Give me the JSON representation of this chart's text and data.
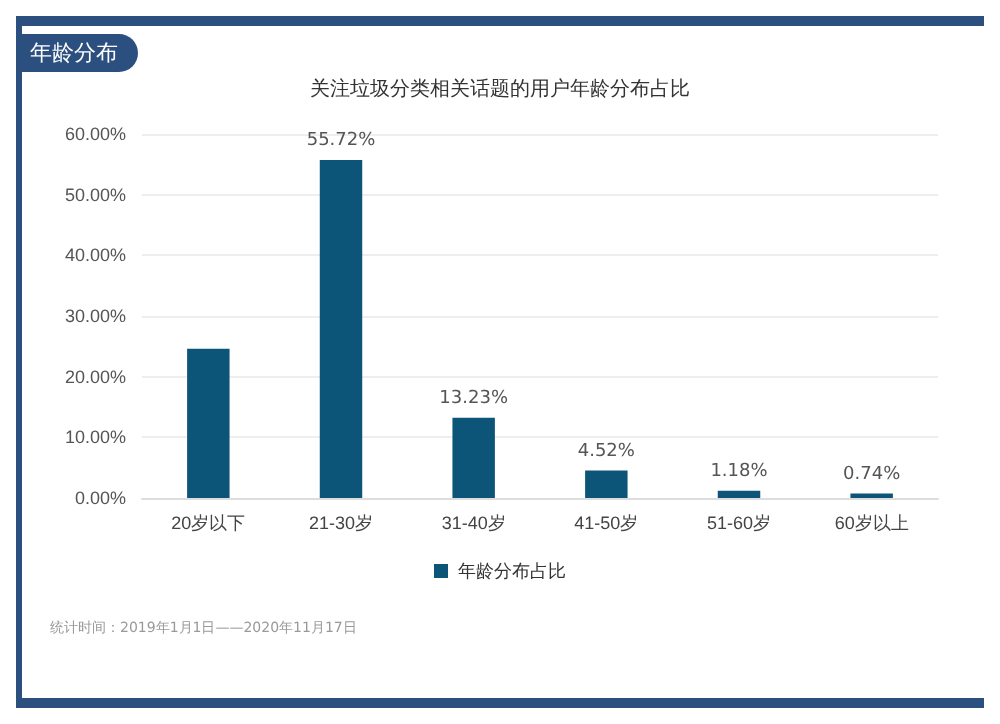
{
  "chart_data": {
    "type": "bar",
    "title": "年龄分布",
    "subtitle": "关注垃圾分类相关话题的用户年龄分布占比",
    "categories": [
      "20岁以下",
      "21-30岁",
      "31-40岁",
      "41-50岁",
      "51-60岁",
      "60岁以上"
    ],
    "series": [
      {
        "name": "年龄分布占比",
        "color": "#0d5479",
        "values": [
          24.6,
          55.72,
          13.23,
          4.52,
          1.18,
          0.74
        ],
        "value_labels": [
          null,
          "55.72%",
          "13.23%",
          "4.52%",
          "1.18%",
          "0.74%"
        ]
      }
    ],
    "ylim": [
      0,
      60
    ],
    "yticks": [
      {
        "value": 0,
        "label": "0.00%"
      },
      {
        "value": 10,
        "label": "10.00%"
      },
      {
        "value": 20,
        "label": "20.00%"
      },
      {
        "value": 30,
        "label": "30.00%"
      },
      {
        "value": 40,
        "label": "40.00%"
      },
      {
        "value": 50,
        "label": "50.00%"
      },
      {
        "value": 60,
        "label": "60.00%"
      }
    ],
    "grid": "y",
    "legend": "bottom",
    "annotations": [
      "统计时间：2019年1月1日——2020年11月17日"
    ]
  }
}
